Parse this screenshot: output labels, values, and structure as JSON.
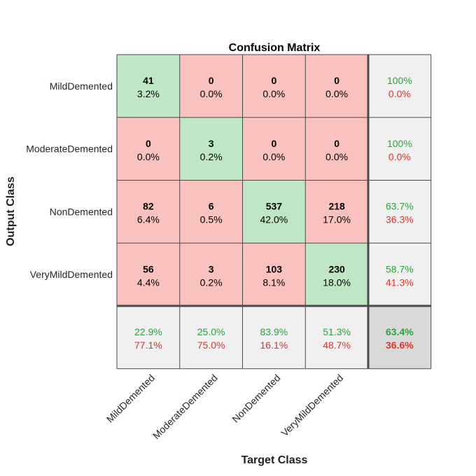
{
  "chart_data": {
    "type": "heatmap",
    "title": "Confusion Matrix",
    "xlabel": "Target Class",
    "ylabel": "Output Class",
    "classes": [
      "MildDemented",
      "ModerateDemented",
      "NonDemented",
      "VeryMildDemented"
    ],
    "counts": [
      [
        41,
        0,
        0,
        0
      ],
      [
        0,
        3,
        0,
        0
      ],
      [
        82,
        6,
        537,
        218
      ],
      [
        56,
        3,
        103,
        230
      ]
    ],
    "percents": [
      [
        "3.2%",
        "0.0%",
        "0.0%",
        "0.0%"
      ],
      [
        "0.0%",
        "0.2%",
        "0.0%",
        "0.0%"
      ],
      [
        "6.4%",
        "0.5%",
        "42.0%",
        "17.0%"
      ],
      [
        "4.4%",
        "0.2%",
        "8.1%",
        "18.0%"
      ]
    ],
    "row_summary": [
      {
        "correct": "100%",
        "incorrect": "0.0%"
      },
      {
        "correct": "100%",
        "incorrect": "0.0%"
      },
      {
        "correct": "63.7%",
        "incorrect": "36.3%"
      },
      {
        "correct": "58.7%",
        "incorrect": "41.3%"
      }
    ],
    "col_summary": [
      {
        "correct": "22.9%",
        "incorrect": "77.1%"
      },
      {
        "correct": "25.0%",
        "incorrect": "75.0%"
      },
      {
        "correct": "83.9%",
        "incorrect": "16.1%"
      },
      {
        "correct": "51.3%",
        "incorrect": "48.7%"
      }
    ],
    "overall": {
      "correct": "63.4%",
      "incorrect": "36.6%"
    }
  },
  "colors": {
    "diagonal_cell": "#bfe6c5",
    "off_diagonal_cell": "#f9c2bf",
    "summary_cell": "#f0f0f0",
    "overall_cell": "#d9d9d9",
    "correct_text": "#2aa43c",
    "incorrect_text": "#e0352b",
    "grid_line": "#4a4a4a"
  }
}
